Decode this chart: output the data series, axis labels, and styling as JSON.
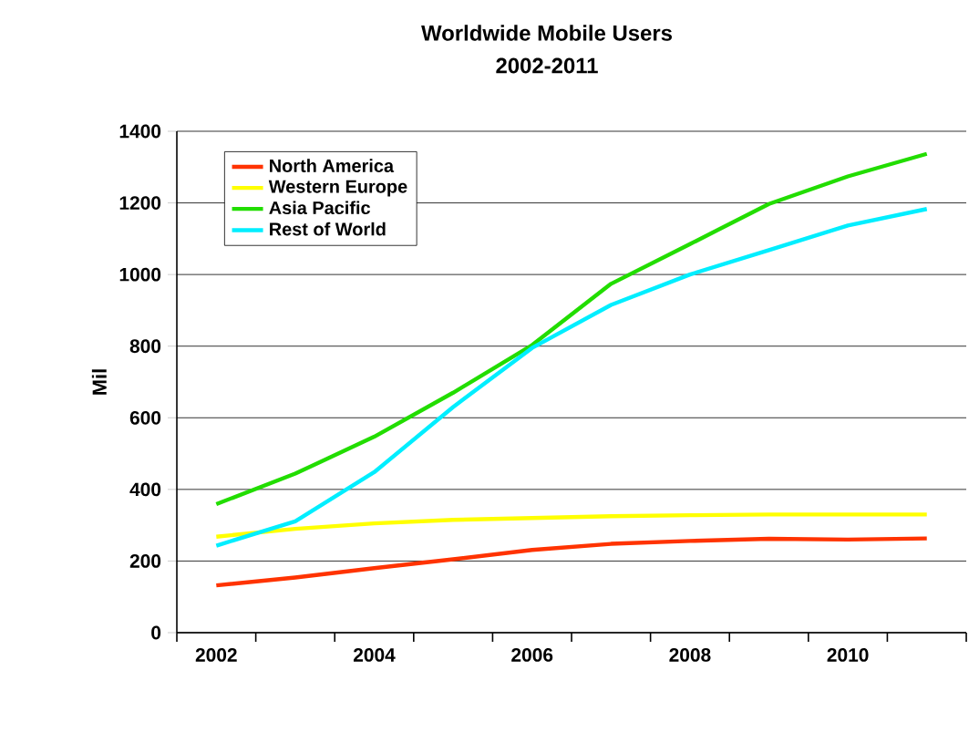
{
  "chart_data": {
    "type": "line",
    "title": "Worldwide Mobile Users",
    "subtitle": "2002-2011",
    "ylabel": "Mil",
    "categories": [
      "2002",
      null,
      "2004",
      null,
      "2006",
      null,
      "2008",
      null,
      "2010",
      null
    ],
    "series": [
      {
        "name": "North America",
        "color": "#ff3300",
        "values": [
          132,
          154,
          180,
          205,
          231,
          248,
          256,
          262,
          260,
          263
        ]
      },
      {
        "name": "Western Europe",
        "color": "#ffff00",
        "values": [
          268,
          290,
          305,
          315,
          320,
          325,
          328,
          330,
          330,
          330
        ]
      },
      {
        "name": "Asia Pacific",
        "color": "#22dd00",
        "values": [
          359,
          444,
          547,
          670,
          803,
          974,
          1085,
          1197,
          1274,
          1337
        ]
      },
      {
        "name": "Rest of World",
        "color": "#00eeff",
        "values": [
          243,
          311,
          448,
          630,
          795,
          915,
          1000,
          1068,
          1137,
          1183
        ]
      }
    ],
    "ylim": [
      0,
      1400
    ],
    "yticks": [
      0,
      200,
      400,
      600,
      800,
      1000,
      1200,
      1400
    ],
    "grid": "y",
    "legend": "top left",
    "marker": "none",
    "line_style": "solid"
  }
}
